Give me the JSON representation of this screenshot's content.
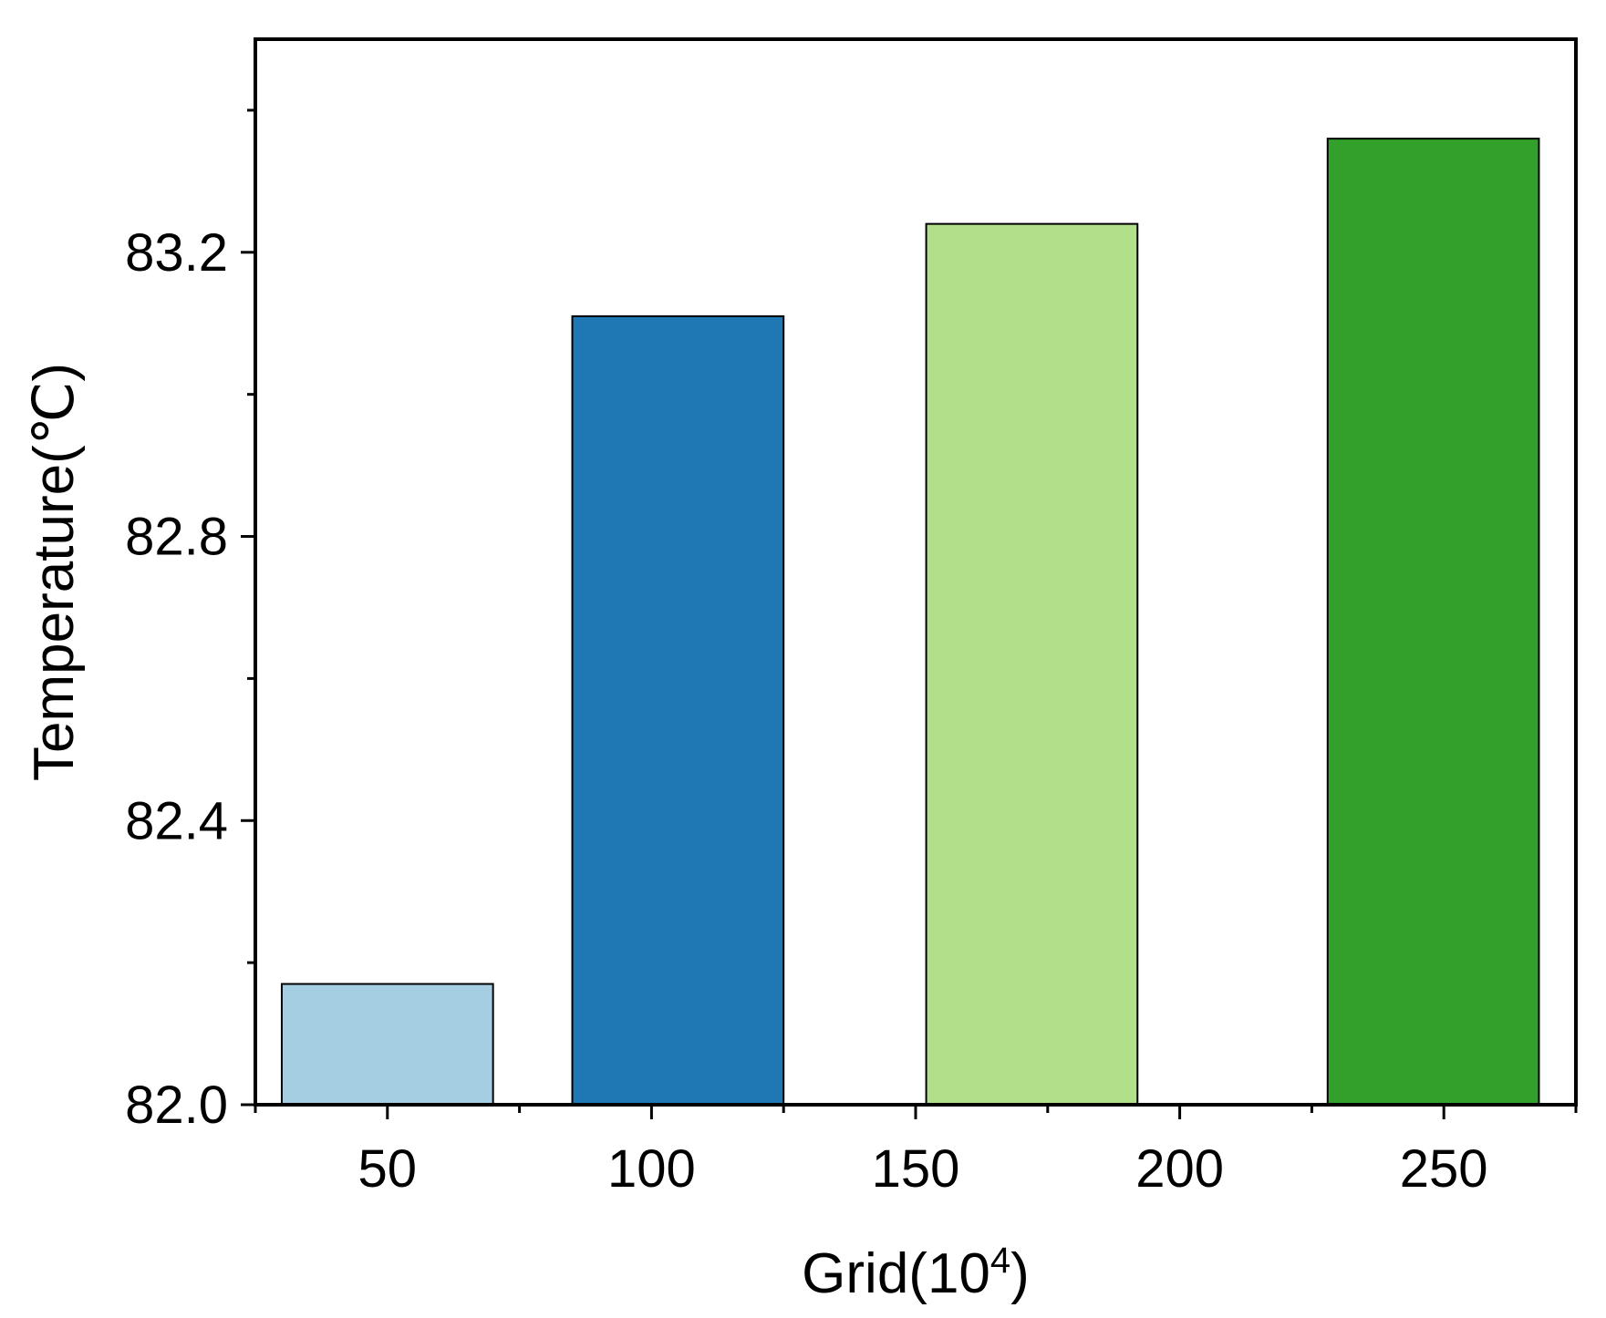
{
  "chart_data": {
    "type": "bar",
    "title": "",
    "xlabel": "Grid(10",
    "xlabel_superscript": "4",
    "xlabel_suffix": ")",
    "ylabel": "Temperature(℃)",
    "x_ticks": [
      "50",
      "100",
      "150",
      "200",
      "250"
    ],
    "x_tick_values": [
      50,
      100,
      150,
      200,
      250
    ],
    "xlim": [
      25,
      275
    ],
    "y_ticks": [
      "82.0",
      "82.4",
      "82.8",
      "83.2"
    ],
    "y_tick_values": [
      82.0,
      82.4,
      82.8,
      83.2
    ],
    "ylim": [
      82.0,
      83.5
    ],
    "grid": false,
    "legend": false,
    "bars": [
      {
        "x_start": 30,
        "x_end": 70,
        "value": 82.17,
        "color": "#a6cee3"
      },
      {
        "x_start": 85,
        "x_end": 125,
        "value": 83.11,
        "color": "#1f78b4"
      },
      {
        "x_start": 152,
        "x_end": 192,
        "value": 83.24,
        "color": "#b2df8a"
      },
      {
        "x_start": 228,
        "x_end": 268,
        "value": 83.36,
        "color": "#33a02c"
      }
    ]
  }
}
